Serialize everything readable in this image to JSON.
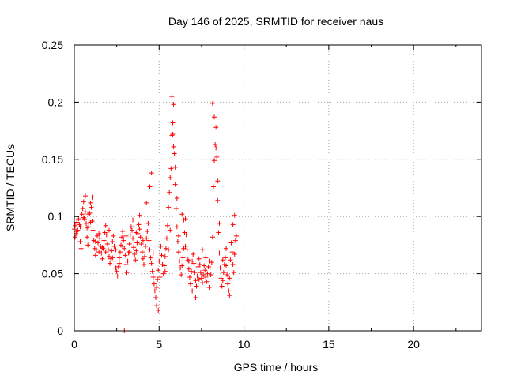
{
  "chart_data": {
    "type": "scatter",
    "title": "Day 146 of 2025, SRMTID for receiver naus",
    "xlabel": "GPS time / hours",
    "ylabel": "SRMTID / TECUs",
    "xlim": [
      0,
      24
    ],
    "ylim": [
      0,
      0.25
    ],
    "x_ticks": [
      0,
      5,
      10,
      15,
      20
    ],
    "x_tick_labels": [
      "0",
      "5",
      "10",
      "15",
      "20"
    ],
    "y_ticks": [
      0,
      0.05,
      0.1,
      0.15,
      0.2,
      0.25
    ],
    "y_tick_labels": [
      "0",
      "0.05",
      "0.1",
      "0.15",
      "0.2",
      "0.25"
    ],
    "grid": true,
    "marker": "+",
    "color": "#ff0000",
    "series": [
      {
        "name": "SRMTID",
        "points": [
          [
            0.0,
            0.089
          ],
          [
            0.05,
            0.092
          ],
          [
            0.1,
            0.085
          ],
          [
            0.15,
            0.095
          ],
          [
            0.2,
            0.088
          ],
          [
            0.25,
            0.098
          ],
          [
            0.3,
            0.093
          ],
          [
            0.35,
            0.078
          ],
          [
            0.4,
            0.072
          ],
          [
            0.45,
            0.102
          ],
          [
            0.5,
            0.107
          ],
          [
            0.55,
            0.113
          ],
          [
            0.6,
            0.098
          ],
          [
            0.65,
            0.118
          ],
          [
            0.7,
            0.094
          ],
          [
            0.75,
            0.082
          ],
          [
            0.8,
            0.075
          ],
          [
            0.85,
            0.091
          ],
          [
            0.9,
            0.103
          ],
          [
            0.95,
            0.112
          ],
          [
            1.0,
            0.108
          ],
          [
            1.05,
            0.096
          ],
          [
            1.1,
            0.088
          ],
          [
            1.15,
            0.079
          ],
          [
            1.2,
            0.072
          ],
          [
            1.25,
            0.066
          ],
          [
            1.3,
            0.071
          ],
          [
            1.35,
            0.083
          ],
          [
            1.4,
            0.077
          ],
          [
            1.45,
            0.069
          ],
          [
            1.5,
            0.081
          ],
          [
            1.55,
            0.074
          ],
          [
            1.6,
            0.068
          ],
          [
            1.65,
            0.063
          ],
          [
            1.7,
            0.072
          ],
          [
            1.75,
            0.079
          ],
          [
            1.8,
            0.086
          ],
          [
            1.85,
            0.092
          ],
          [
            1.9,
            0.084
          ],
          [
            1.95,
            0.076
          ],
          [
            2.0,
            0.071
          ],
          [
            2.05,
            0.065
          ],
          [
            2.1,
            0.059
          ],
          [
            2.15,
            0.063
          ],
          [
            2.2,
            0.07
          ],
          [
            2.25,
            0.078
          ],
          [
            2.3,
            0.083
          ],
          [
            2.35,
            0.074
          ],
          [
            2.4,
            0.061
          ],
          [
            2.45,
            0.055
          ],
          [
            2.5,
            0.052
          ],
          [
            2.55,
            0.048
          ],
          [
            2.6,
            0.056
          ],
          [
            2.65,
            0.064
          ],
          [
            2.7,
            0.069
          ],
          [
            2.75,
            0.075
          ],
          [
            2.8,
            0.082
          ],
          [
            2.85,
            0.087
          ],
          [
            2.9,
            0.079
          ],
          [
            2.95,
            0.072
          ],
          [
            3.0,
            0.066
          ],
          [
            3.05,
            0.058
          ],
          [
            3.1,
            0.051
          ],
          [
            3.15,
            0.061
          ],
          [
            3.2,
            0.068
          ],
          [
            3.25,
            0.076
          ],
          [
            3.3,
            0.084
          ],
          [
            3.35,
            0.091
          ],
          [
            3.4,
            0.088
          ],
          [
            3.45,
            0.081
          ],
          [
            3.5,
            0.073
          ],
          [
            3.55,
            0.067
          ],
          [
            3.6,
            0.062
          ],
          [
            3.65,
            0.07
          ],
          [
            3.7,
            0.077
          ],
          [
            3.75,
            0.085
          ],
          [
            3.8,
            0.093
          ],
          [
            3.85,
            0.089
          ],
          [
            3.9,
            0.082
          ],
          [
            3.95,
            0.076
          ],
          [
            4.0,
            0.069
          ],
          [
            4.05,
            0.063
          ],
          [
            4.1,
            0.058
          ],
          [
            4.15,
            0.065
          ],
          [
            4.2,
            0.074
          ],
          [
            4.25,
            0.081
          ],
          [
            4.3,
            0.087
          ],
          [
            4.35,
            0.094
          ],
          [
            4.4,
            0.079
          ],
          [
            4.45,
            0.071
          ],
          [
            4.5,
            0.064
          ],
          [
            4.55,
            0.059
          ],
          [
            4.6,
            0.052
          ],
          [
            4.65,
            0.047
          ],
          [
            4.7,
            0.041
          ],
          [
            4.75,
            0.035
          ],
          [
            4.8,
            0.029
          ],
          [
            4.85,
            0.038
          ],
          [
            4.9,
            0.045
          ],
          [
            4.95,
            0.053
          ],
          [
            5.0,
            0.061
          ],
          [
            5.05,
            0.068
          ],
          [
            5.1,
            0.074
          ],
          [
            5.15,
            0.066
          ],
          [
            5.2,
            0.058
          ],
          [
            5.25,
            0.05
          ],
          [
            5.3,
            0.057
          ],
          [
            5.35,
            0.065
          ],
          [
            5.4,
            0.072
          ],
          [
            5.45,
            0.081
          ],
          [
            5.5,
            0.092
          ],
          [
            5.55,
            0.108
          ],
          [
            5.6,
            0.121
          ],
          [
            5.65,
            0.134
          ],
          [
            5.7,
            0.142
          ],
          [
            5.75,
            0.171
          ],
          [
            5.8,
            0.182
          ],
          [
            5.85,
            0.198
          ],
          [
            5.9,
            0.155
          ],
          [
            5.95,
            0.128
          ],
          [
            6.0,
            0.107
          ],
          [
            6.05,
            0.091
          ],
          [
            6.1,
            0.078
          ],
          [
            6.15,
            0.069
          ],
          [
            6.2,
            0.061
          ],
          [
            6.25,
            0.055
          ],
          [
            6.3,
            0.049
          ],
          [
            6.35,
            0.057
          ],
          [
            6.4,
            0.064
          ],
          [
            6.45,
            0.072
          ],
          [
            6.5,
            0.086
          ],
          [
            6.55,
            0.098
          ],
          [
            6.6,
            0.084
          ],
          [
            6.65,
            0.071
          ],
          [
            6.7,
            0.062
          ],
          [
            6.75,
            0.054
          ],
          [
            6.8,
            0.047
          ],
          [
            6.85,
            0.041
          ],
          [
            6.9,
            0.052
          ],
          [
            6.95,
            0.061
          ],
          [
            7.0,
            0.067
          ],
          [
            7.05,
            0.059
          ],
          [
            7.1,
            0.051
          ],
          [
            7.15,
            0.044
          ],
          [
            7.2,
            0.039
          ],
          [
            7.25,
            0.048
          ],
          [
            7.3,
            0.056
          ],
          [
            7.35,
            0.063
          ],
          [
            7.4,
            0.058
          ],
          [
            7.45,
            0.051
          ],
          [
            7.5,
            0.046
          ],
          [
            7.55,
            0.042
          ],
          [
            7.6,
            0.049
          ],
          [
            7.65,
            0.057
          ],
          [
            7.7,
            0.053
          ],
          [
            7.75,
            0.047
          ],
          [
            7.8,
            0.043
          ],
          [
            7.85,
            0.05
          ],
          [
            7.9,
            0.056
          ],
          [
            7.95,
            0.061
          ],
          [
            8.0,
            0.055
          ],
          [
            8.05,
            0.049
          ],
          [
            8.1,
            0.06
          ],
          [
            8.15,
            0.082
          ],
          [
            8.2,
            0.126
          ],
          [
            8.25,
            0.149
          ],
          [
            8.3,
            0.163
          ],
          [
            8.35,
            0.178
          ],
          [
            8.4,
            0.152
          ],
          [
            8.45,
            0.114
          ],
          [
            8.5,
            0.086
          ],
          [
            8.55,
            0.068
          ],
          [
            8.6,
            0.055
          ],
          [
            8.65,
            0.046
          ],
          [
            8.7,
            0.039
          ],
          [
            8.75,
            0.044
          ],
          [
            8.8,
            0.051
          ],
          [
            8.85,
            0.058
          ],
          [
            8.9,
            0.064
          ],
          [
            8.95,
            0.057
          ],
          [
            9.0,
            0.049
          ],
          [
            9.05,
            0.041
          ],
          [
            9.1,
            0.035
          ],
          [
            9.15,
            0.046
          ],
          [
            9.2,
            0.062
          ],
          [
            9.25,
            0.077
          ],
          [
            9.3,
            0.069
          ],
          [
            9.35,
            0.058
          ],
          [
            9.4,
            0.051
          ],
          [
            9.45,
            0.067
          ],
          [
            9.5,
            0.079
          ],
          [
            0.05,
            0.082
          ],
          [
            0.15,
            0.087
          ],
          [
            0.35,
            0.091
          ],
          [
            0.55,
            0.099
          ],
          [
            0.65,
            0.104
          ],
          [
            0.75,
            0.09
          ],
          [
            0.85,
            0.102
          ],
          [
            0.95,
            0.095
          ],
          [
            1.05,
            0.117
          ],
          [
            1.25,
            0.078
          ],
          [
            1.45,
            0.085
          ],
          [
            1.65,
            0.073
          ],
          [
            1.85,
            0.069
          ],
          [
            2.05,
            0.088
          ],
          [
            2.25,
            0.064
          ],
          [
            2.45,
            0.071
          ],
          [
            2.65,
            0.059
          ],
          [
            2.85,
            0.074
          ],
          [
            3.05,
            0.083
          ],
          [
            3.25,
            0.069
          ],
          [
            3.45,
            0.097
          ],
          [
            3.65,
            0.086
          ],
          [
            3.85,
            0.101
          ],
          [
            4.05,
            0.079
          ],
          [
            4.25,
            0.112
          ],
          [
            4.45,
            0.126
          ],
          [
            4.55,
            0.138
          ],
          [
            4.65,
            0.068
          ],
          [
            4.85,
            0.022
          ],
          [
            4.95,
            0.018
          ],
          [
            5.05,
            0.047
          ],
          [
            5.35,
            0.052
          ],
          [
            5.55,
            0.071
          ],
          [
            5.65,
            0.088
          ],
          [
            5.75,
            0.205
          ],
          [
            5.8,
            0.172
          ],
          [
            5.85,
            0.161
          ],
          [
            5.95,
            0.143
          ],
          [
            6.05,
            0.116
          ],
          [
            6.15,
            0.083
          ],
          [
            6.35,
            0.102
          ],
          [
            6.45,
            0.097
          ],
          [
            6.55,
            0.074
          ],
          [
            6.75,
            0.061
          ],
          [
            6.95,
            0.035
          ],
          [
            7.15,
            0.029
          ],
          [
            7.35,
            0.045
          ],
          [
            7.55,
            0.071
          ],
          [
            7.75,
            0.064
          ],
          [
            7.95,
            0.038
          ],
          [
            8.15,
            0.199
          ],
          [
            8.25,
            0.187
          ],
          [
            8.35,
            0.16
          ],
          [
            8.45,
            0.131
          ],
          [
            8.55,
            0.094
          ],
          [
            8.75,
            0.062
          ],
          [
            8.95,
            0.072
          ],
          [
            9.15,
            0.031
          ],
          [
            9.35,
            0.093
          ],
          [
            9.45,
            0.101
          ],
          [
            9.55,
            0.083
          ],
          [
            2.95,
            0.0
          ]
        ]
      }
    ]
  }
}
